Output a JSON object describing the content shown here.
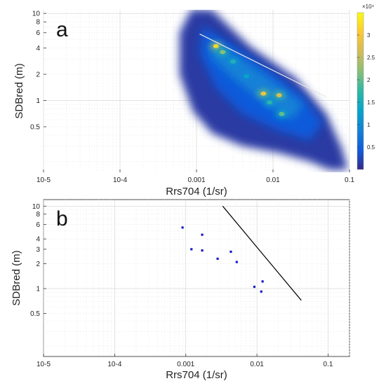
{
  "chart_data": [
    {
      "panel_label": "a",
      "type": "heatmap",
      "xlabel": "Rrs704 (1/sr)",
      "ylabel": "SDBred (m)",
      "x_scale": "log",
      "y_scale": "log",
      "xlim": [
        1e-05,
        0.1
      ],
      "ylim": [
        0.15,
        11
      ],
      "x_ticks": [
        {
          "value": 1e-05,
          "label": "10-5"
        },
        {
          "value": 0.0001,
          "label": "10-4"
        },
        {
          "value": 0.001,
          "label": "0.001"
        },
        {
          "value": 0.01,
          "label": "0.01"
        },
        {
          "value": 0.1,
          "label": "0.1"
        }
      ],
      "y_ticks": [
        {
          "value": 0.5,
          "label": "0.5"
        },
        {
          "value": 1,
          "label": "1"
        },
        {
          "value": 2,
          "label": "2"
        },
        {
          "value": 4,
          "label": "4"
        },
        {
          "value": 6,
          "label": "6"
        },
        {
          "value": 8,
          "label": "8"
        },
        {
          "value": 10,
          "label": "10"
        }
      ],
      "grid": true,
      "colorbar": {
        "min": 0,
        "max": 35000,
        "ticks": [
          {
            "value": 5000,
            "label": "0.5"
          },
          {
            "value": 10000,
            "label": "1"
          },
          {
            "value": 15000,
            "label": "1.5"
          },
          {
            "value": 20000,
            "label": "2"
          },
          {
            "value": 25000,
            "label": "2.5"
          },
          {
            "value": 30000,
            "label": "3"
          }
        ],
        "multiplier_label": "×10⁴",
        "colors": [
          "#352a87",
          "#0f5cdd",
          "#1481d6",
          "#06a4ca",
          "#2eb7a4",
          "#87bf77",
          "#d1bb59",
          "#fec832",
          "#f9fb0e"
        ]
      },
      "density_hotspots": [
        {
          "x": 0.0018,
          "y": 4.2,
          "density": 32000
        },
        {
          "x": 0.0022,
          "y": 3.6,
          "density": 22000
        },
        {
          "x": 0.003,
          "y": 2.8,
          "density": 16000
        },
        {
          "x": 0.0045,
          "y": 1.9,
          "density": 13000
        },
        {
          "x": 0.0075,
          "y": 1.2,
          "density": 29000
        },
        {
          "x": 0.012,
          "y": 1.15,
          "density": 27000
        },
        {
          "x": 0.013,
          "y": 0.7,
          "density": 20000
        },
        {
          "x": 0.009,
          "y": 0.95,
          "density": 17000
        }
      ],
      "fit_line": {
        "x": [
          0.0011,
          0.05
        ],
        "y": [
          5.8,
          1.1
        ],
        "color": "#e6e6e6"
      }
    },
    {
      "panel_label": "b",
      "type": "scatter",
      "xlabel": "Rrs704 (1/sr)",
      "ylabel": "SDBred (m)",
      "x_scale": "log",
      "y_scale": "log",
      "xlim": [
        1e-05,
        0.2
      ],
      "ylim": [
        0.15,
        12
      ],
      "x_ticks": [
        {
          "value": 1e-05,
          "label": "10-5"
        },
        {
          "value": 0.0001,
          "label": "10-4"
        },
        {
          "value": 0.001,
          "label": "0.001"
        },
        {
          "value": 0.01,
          "label": "0.01"
        },
        {
          "value": 0.1,
          "label": "0.1"
        }
      ],
      "y_ticks": [
        {
          "value": 0.5,
          "label": "0.5"
        },
        {
          "value": 1,
          "label": "1"
        },
        {
          "value": 2,
          "label": "2"
        },
        {
          "value": 3,
          "label": "3"
        },
        {
          "value": 4,
          "label": "4"
        },
        {
          "value": 6,
          "label": "6"
        },
        {
          "value": 8,
          "label": "8"
        },
        {
          "value": 10,
          "label": "10"
        }
      ],
      "grid": true,
      "points": [
        {
          "x": 0.0009,
          "y": 5.5
        },
        {
          "x": 0.0012,
          "y": 3.0
        },
        {
          "x": 0.0017,
          "y": 4.5
        },
        {
          "x": 0.0017,
          "y": 2.9
        },
        {
          "x": 0.0028,
          "y": 2.3
        },
        {
          "x": 0.0043,
          "y": 2.8
        },
        {
          "x": 0.0052,
          "y": 2.1
        },
        {
          "x": 0.0092,
          "y": 1.05
        },
        {
          "x": 0.012,
          "y": 1.22
        },
        {
          "x": 0.0115,
          "y": 0.92
        }
      ],
      "point_color": "#1a1acc",
      "fit_line": {
        "x": [
          0.0033,
          0.042
        ],
        "y": [
          10.0,
          0.72
        ],
        "color": "#000000"
      }
    }
  ]
}
